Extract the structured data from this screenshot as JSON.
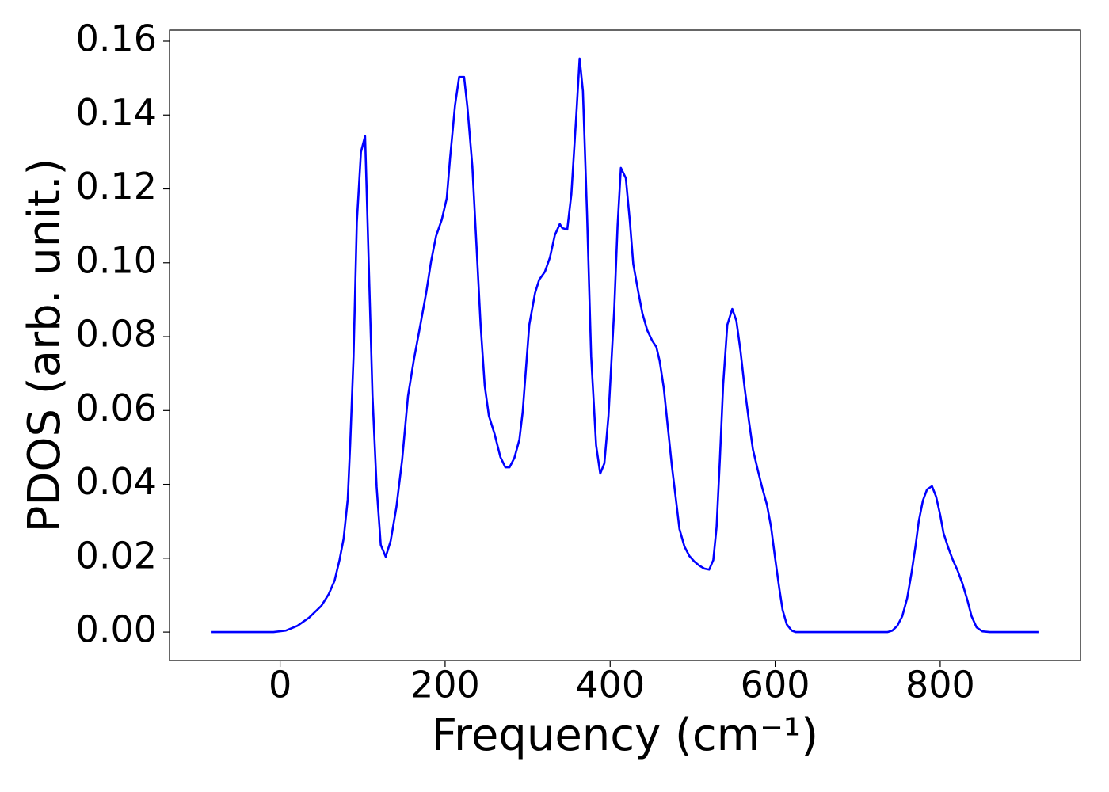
{
  "chart_data": {
    "type": "line",
    "x_label": "Frequency (cm⁻¹)",
    "y_label": "PDOS (arb. unit.)",
    "x": [
      -84,
      -8,
      7,
      21,
      35,
      50,
      59,
      66,
      72,
      77,
      82,
      85,
      89,
      93,
      98,
      103,
      106,
      112,
      117,
      122,
      128,
      134,
      141,
      148,
      155,
      162,
      170,
      177,
      183,
      189,
      196,
      202,
      206,
      212,
      217,
      223,
      227,
      233,
      238,
      243,
      248,
      253,
      260,
      267,
      273,
      278,
      284,
      290,
      294,
      302,
      309,
      314,
      321,
      327,
      333,
      339,
      342,
      348,
      353,
      359,
      363,
      367,
      372,
      377,
      383,
      388,
      393,
      398,
      405,
      409,
      413,
      419,
      424,
      428,
      434,
      439,
      445,
      451,
      456,
      460,
      465,
      470,
      475,
      480,
      484,
      490,
      496,
      502,
      508,
      514,
      520,
      525,
      529,
      533,
      537,
      542,
      548,
      553,
      558,
      563,
      568,
      573,
      579,
      584,
      590,
      595,
      600,
      605,
      609,
      614,
      620,
      625,
      736,
      742,
      748,
      754,
      760,
      765,
      770,
      774,
      779,
      784,
      790,
      795,
      800,
      804,
      810,
      815,
      821,
      827,
      833,
      838,
      844,
      851,
      860,
      920
    ],
    "series": [
      {
        "color": "#0000ff",
        "values": [
          0,
          0,
          0.0004,
          0.0017,
          0.0039,
          0.0071,
          0.0103,
          0.0139,
          0.0195,
          0.0253,
          0.036,
          0.051,
          0.0746,
          0.111,
          0.13,
          0.1343,
          0.111,
          0.064,
          0.0393,
          0.0236,
          0.0204,
          0.0247,
          0.0339,
          0.0468,
          0.0639,
          0.0736,
          0.0832,
          0.0918,
          0.1004,
          0.1072,
          0.1117,
          0.1175,
          0.1283,
          0.1426,
          0.1503,
          0.1503,
          0.1422,
          0.1261,
          0.1047,
          0.0832,
          0.0667,
          0.0586,
          0.0536,
          0.0474,
          0.0446,
          0.0446,
          0.0472,
          0.0521,
          0.0596,
          0.0832,
          0.0918,
          0.0954,
          0.0976,
          0.1014,
          0.1075,
          0.1105,
          0.1094,
          0.109,
          0.1186,
          0.14,
          0.1553,
          0.1465,
          0.1132,
          0.0746,
          0.0506,
          0.0429,
          0.0457,
          0.0586,
          0.0875,
          0.11,
          0.1257,
          0.1229,
          0.111,
          0.0997,
          0.0922,
          0.0864,
          0.0817,
          0.0789,
          0.0772,
          0.0734,
          0.0661,
          0.0553,
          0.0446,
          0.0354,
          0.0279,
          0.0232,
          0.0206,
          0.0191,
          0.018,
          0.0172,
          0.0169,
          0.0195,
          0.0285,
          0.0468,
          0.0671,
          0.0832,
          0.0875,
          0.0843,
          0.0761,
          0.0661,
          0.0575,
          0.0495,
          0.0438,
          0.0393,
          0.0345,
          0.0285,
          0.0199,
          0.0118,
          0.006,
          0.0021,
          0.0004,
          0,
          0,
          0.0004,
          0.0017,
          0.0043,
          0.0092,
          0.0157,
          0.0232,
          0.03,
          0.0356,
          0.0386,
          0.0395,
          0.0367,
          0.0317,
          0.0268,
          0.0227,
          0.0197,
          0.0167,
          0.0131,
          0.0086,
          0.0043,
          0.0013,
          0.0002,
          0,
          0
        ]
      }
    ],
    "xlim": [
      -134,
      970
    ],
    "ylim": [
      -0.0077,
      0.163
    ],
    "xticks": [
      0,
      200,
      400,
      600,
      800
    ],
    "yticks": [
      {
        "value": 0,
        "label": "0.00"
      },
      {
        "value": 0.02,
        "label": "0.02"
      },
      {
        "value": 0.04,
        "label": "0.04"
      },
      {
        "value": 0.06,
        "label": "0.06"
      },
      {
        "value": 0.08,
        "label": "0.08"
      },
      {
        "value": 0.1,
        "label": "0.10"
      },
      {
        "value": 0.12,
        "label": "0.12"
      },
      {
        "value": 0.14,
        "label": "0.14"
      },
      {
        "value": 0.16,
        "label": "0.16"
      }
    ]
  }
}
